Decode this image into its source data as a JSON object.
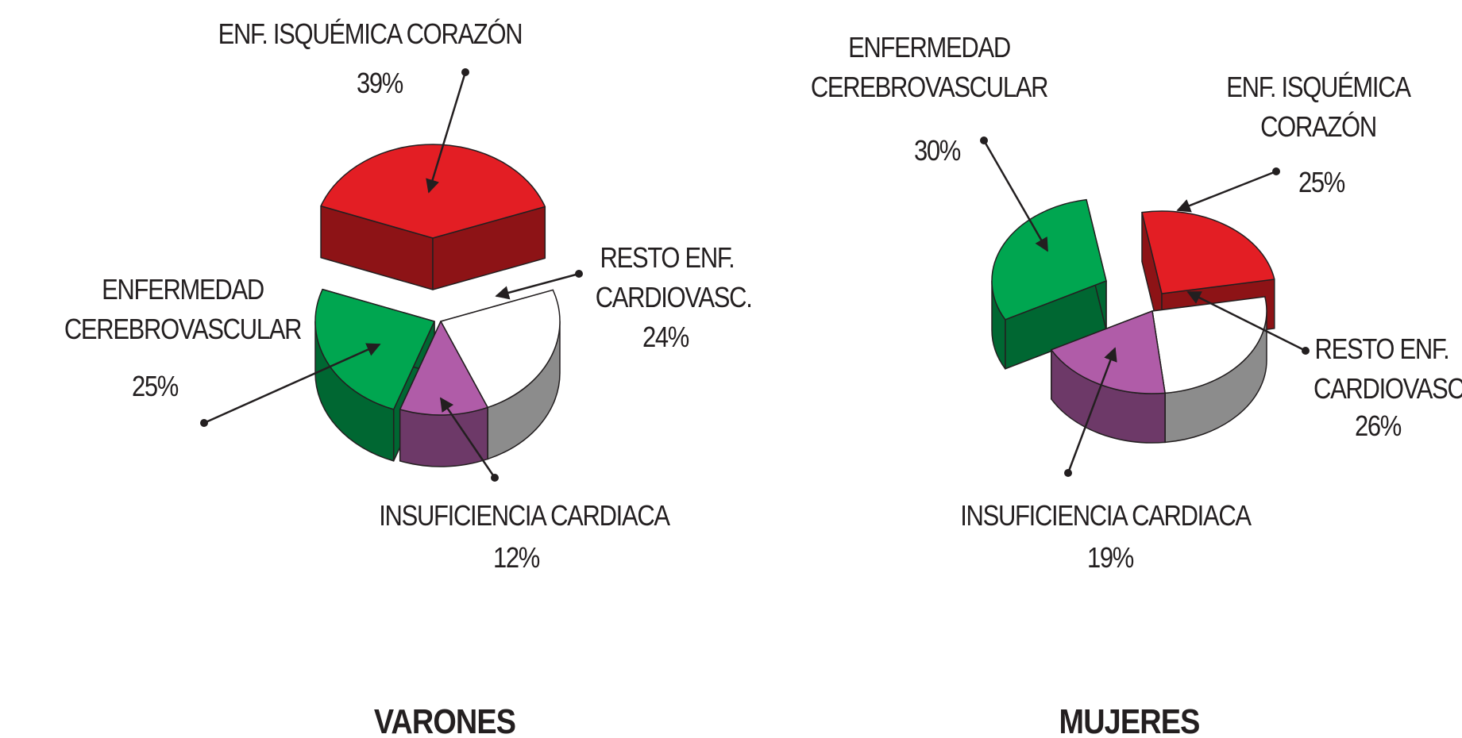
{
  "chart_data": [
    {
      "type": "pie",
      "title": "VARONES",
      "categories": [
        "ENF. ISQUÉMICA CORAZÓN",
        "RESTO ENF. CARDIOVASC.",
        "INSUFICIENCIA CARDIACA",
        "ENFERMEDAD CEREBROVASCULAR"
      ],
      "values": [
        39,
        24,
        12,
        25
      ],
      "value_labels": [
        "39%",
        "24%",
        "12%",
        "25%"
      ],
      "colors": [
        "#e31e24",
        "#ffffff",
        "#b05ca8",
        "#00a650"
      ]
    },
    {
      "type": "pie",
      "title": "MUJERES",
      "categories": [
        "ENF. ISQUÉMICA CORAZÓN",
        "RESTO ENF. CARDIOVASC.",
        "INSUFICIENCIA CARDIACA",
        "ENFERMEDAD CEREBROVASCULAR"
      ],
      "values": [
        25,
        26,
        19,
        30
      ],
      "value_labels": [
        "25%",
        "26%",
        "19%",
        "30%"
      ],
      "colors": [
        "#e31e24",
        "#ffffff",
        "#b05ca8",
        "#00a650"
      ]
    }
  ]
}
